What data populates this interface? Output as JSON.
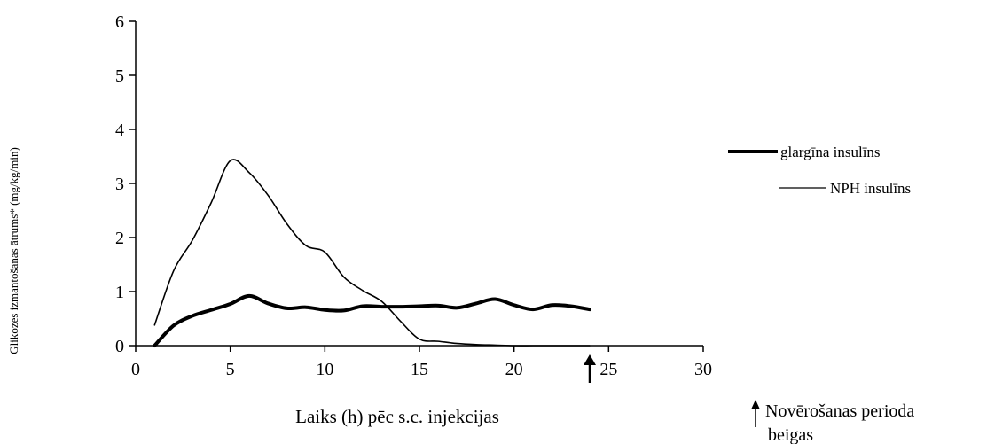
{
  "chart_data": {
    "type": "line",
    "title": "",
    "xlabel": "Laiks (h) pēc s.c. injekcijas",
    "ylabel": "Glikozes izmantošanas ātrums* (mg/kg/min)",
    "xlim": [
      0,
      30
    ],
    "ylim": [
      0,
      6
    ],
    "x_ticks": [
      0,
      5,
      10,
      15,
      20,
      25,
      30
    ],
    "y_ticks": [
      0,
      1,
      2,
      3,
      4,
      5,
      6
    ],
    "grid": false,
    "legend_position": "right",
    "series": [
      {
        "name": "glargīna insulīns",
        "style": "thick",
        "color": "#000000",
        "x": [
          1,
          2,
          3,
          4,
          5,
          6,
          7,
          8,
          9,
          10,
          11,
          12,
          13,
          14,
          15,
          16,
          17,
          18,
          19,
          20,
          21,
          22,
          23,
          24
        ],
        "y": [
          0.0,
          0.37,
          0.55,
          0.66,
          0.77,
          0.92,
          0.78,
          0.69,
          0.71,
          0.66,
          0.65,
          0.73,
          0.72,
          0.72,
          0.73,
          0.74,
          0.7,
          0.78,
          0.86,
          0.75,
          0.67,
          0.75,
          0.73,
          0.67
        ]
      },
      {
        "name": "NPH insulīns",
        "style": "thin",
        "color": "#000000",
        "x": [
          1,
          2,
          3,
          4,
          5,
          6,
          7,
          8,
          9,
          10,
          11,
          12,
          13,
          14,
          15,
          16,
          17,
          18,
          19,
          20,
          21,
          22,
          23,
          24
        ],
        "y": [
          0.38,
          1.38,
          1.95,
          2.65,
          3.42,
          3.2,
          2.78,
          2.25,
          1.85,
          1.73,
          1.27,
          1.02,
          0.82,
          0.45,
          0.12,
          0.08,
          0.04,
          0.02,
          0.01,
          0.0,
          0.0,
          0.0,
          0.0,
          0.0
        ]
      }
    ],
    "annotation": {
      "arrow_x": 24,
      "text": "Novērošanas perioda beigas"
    }
  }
}
